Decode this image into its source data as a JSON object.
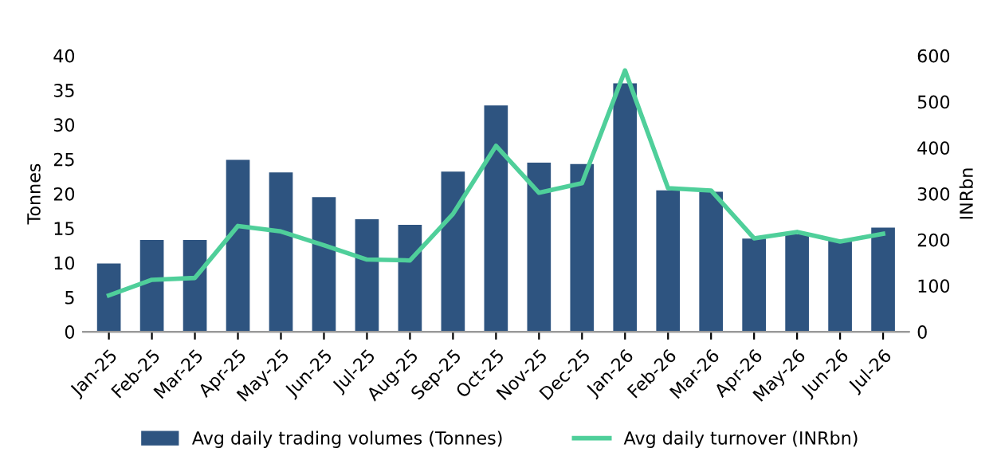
{
  "chart_data": {
    "type": "bar",
    "categories": [
      "Jan-25",
      "Feb-25",
      "Mar-25",
      "Apr-25",
      "May-25",
      "Jun-25",
      "Jul-25",
      "Aug-25",
      "Sep-25",
      "Oct-25",
      "Nov-25",
      "Dec-25",
      "Jan-26",
      "Feb-26",
      "Mar-26",
      "Apr-26",
      "May-26",
      "Jun-26",
      "Jul-26"
    ],
    "series": [
      {
        "name": "Avg daily trading volumes (Tonnes)",
        "color": "#2e5480",
        "values": [
          9.9,
          13.3,
          13.3,
          24.9,
          23.1,
          19.5,
          16.3,
          15.5,
          23.2,
          32.8,
          24.5,
          24.3,
          36.0,
          20.5,
          20.3,
          13.5,
          14.1,
          13.2,
          15.1
        ]
      },
      {
        "name": "Avg daily turnover (INRbn)",
        "type": "line",
        "axis": "y2",
        "color": "#4fcf9a",
        "values": [
          79,
          113,
          117,
          230,
          218,
          188,
          157,
          155,
          256,
          404,
          302,
          323,
          568,
          312,
          307,
          203,
          217,
          196,
          213
        ]
      }
    ],
    "ylabel": "Tonnes",
    "y2label": "INRbn",
    "ylim": [
      0,
      40
    ],
    "yticks": [
      0,
      5,
      10,
      15,
      20,
      25,
      30,
      35,
      40
    ],
    "y2lim": [
      0,
      600
    ],
    "y2ticks": [
      0,
      100,
      200,
      300,
      400,
      500,
      600
    ],
    "grid": false,
    "legend": "bottom"
  }
}
